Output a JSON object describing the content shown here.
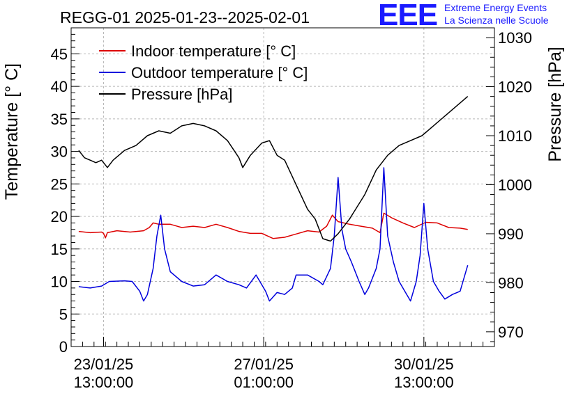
{
  "chart_data": {
    "type": "line",
    "title": "REGG-01 2025-01-23--2025-02-01",
    "ylabel": "Temperature [° C]",
    "y2label": "Pressure [hPa]",
    "ylim": [
      0,
      49
    ],
    "y2lim": [
      967,
      1032
    ],
    "xlim": [
      "2025-01-22T20:00",
      "2025-02-01T02:00"
    ],
    "yticks": [
      0,
      5,
      10,
      15,
      20,
      25,
      30,
      35,
      40,
      45
    ],
    "y2ticks": [
      970,
      980,
      990,
      1000,
      1010,
      1020,
      1030
    ],
    "xticks": [
      {
        "x": "2025-01-23T13:00",
        "label": [
          "23/01/25",
          "13:00:00"
        ]
      },
      {
        "x": "2025-01-27T01:00",
        "label": [
          "27/01/25",
          "01:00:00"
        ]
      },
      {
        "x": "2025-01-30T13:00",
        "label": [
          "30/01/25",
          "13:00:00"
        ]
      }
    ],
    "grid": true,
    "legend_position": "top-left",
    "series": [
      {
        "name": "Indoor temperature [° C]",
        "axis": "left",
        "color": "#dd0000",
        "points": [
          [
            "2025-01-23T00:00",
            17.7
          ],
          [
            "2025-01-23T06:00",
            17.5
          ],
          [
            "2025-01-23T12:00",
            17.6
          ],
          [
            "2025-01-23T13:00",
            17.4
          ],
          [
            "2025-01-23T14:00",
            16.7
          ],
          [
            "2025-01-23T15:00",
            17.5
          ],
          [
            "2025-01-23T20:00",
            17.8
          ],
          [
            "2025-01-24T03:00",
            17.6
          ],
          [
            "2025-01-24T10:00",
            17.8
          ],
          [
            "2025-01-24T13:00",
            18.3
          ],
          [
            "2025-01-24T15:00",
            19.0
          ],
          [
            "2025-01-24T18:00",
            18.8
          ],
          [
            "2025-01-25T00:00",
            18.8
          ],
          [
            "2025-01-25T06:00",
            18.3
          ],
          [
            "2025-01-25T12:00",
            18.5
          ],
          [
            "2025-01-25T18:00",
            18.3
          ],
          [
            "2025-01-26T00:00",
            18.8
          ],
          [
            "2025-01-26T06:00",
            18.3
          ],
          [
            "2025-01-26T12:00",
            17.7
          ],
          [
            "2025-01-26T18:00",
            17.4
          ],
          [
            "2025-01-27T00:00",
            17.4
          ],
          [
            "2025-01-27T06:00",
            16.6
          ],
          [
            "2025-01-27T12:00",
            16.8
          ],
          [
            "2025-01-27T18:00",
            17.3
          ],
          [
            "2025-01-28T00:00",
            17.8
          ],
          [
            "2025-01-28T06:00",
            17.6
          ],
          [
            "2025-01-28T10:00",
            18.5
          ],
          [
            "2025-01-28T13:00",
            20.2
          ],
          [
            "2025-01-28T16:00",
            19.2
          ],
          [
            "2025-01-28T22:00",
            18.8
          ],
          [
            "2025-01-29T04:00",
            18.5
          ],
          [
            "2025-01-29T10:00",
            18.2
          ],
          [
            "2025-01-29T14:00",
            17.5
          ],
          [
            "2025-01-29T16:00",
            20.5
          ],
          [
            "2025-01-29T20:00",
            19.8
          ],
          [
            "2025-01-30T02:00",
            19.0
          ],
          [
            "2025-01-30T08:00",
            18.3
          ],
          [
            "2025-01-30T14:00",
            19.1
          ],
          [
            "2025-01-30T20:00",
            19.0
          ],
          [
            "2025-01-31T02:00",
            18.3
          ],
          [
            "2025-01-31T08:00",
            18.2
          ],
          [
            "2025-01-31T12:00",
            18.0
          ]
        ]
      },
      {
        "name": "Outdoor temperature [° C]",
        "axis": "left",
        "color": "#0000dd",
        "points": [
          [
            "2025-01-23T00:00",
            9.2
          ],
          [
            "2025-01-23T06:00",
            9.0
          ],
          [
            "2025-01-23T12:00",
            9.3
          ],
          [
            "2025-01-23T16:00",
            10.0
          ],
          [
            "2025-01-24T00:00",
            10.1
          ],
          [
            "2025-01-24T04:00",
            10.0
          ],
          [
            "2025-01-24T08:00",
            8.5
          ],
          [
            "2025-01-24T10:00",
            7.0
          ],
          [
            "2025-01-24T12:00",
            8.0
          ],
          [
            "2025-01-24T15:00",
            12.0
          ],
          [
            "2025-01-24T17:00",
            17.0
          ],
          [
            "2025-01-24T19:00",
            20.2
          ],
          [
            "2025-01-24T21:00",
            15.0
          ],
          [
            "2025-01-25T00:00",
            11.5
          ],
          [
            "2025-01-25T06:00",
            10.0
          ],
          [
            "2025-01-25T12:00",
            9.3
          ],
          [
            "2025-01-25T18:00",
            9.5
          ],
          [
            "2025-01-26T00:00",
            11.0
          ],
          [
            "2025-01-26T06:00",
            10.0
          ],
          [
            "2025-01-26T12:00",
            9.5
          ],
          [
            "2025-01-26T16:00",
            9.0
          ],
          [
            "2025-01-26T21:00",
            11.0
          ],
          [
            "2025-01-27T02:00",
            8.5
          ],
          [
            "2025-01-27T04:00",
            7.0
          ],
          [
            "2025-01-27T08:00",
            8.3
          ],
          [
            "2025-01-27T12:00",
            8.0
          ],
          [
            "2025-01-27T16:00",
            9.0
          ],
          [
            "2025-01-27T18:00",
            11.0
          ],
          [
            "2025-01-28T00:00",
            11.0
          ],
          [
            "2025-01-28T06:00",
            10.0
          ],
          [
            "2025-01-28T08:00",
            9.5
          ],
          [
            "2025-01-28T12:00",
            12.0
          ],
          [
            "2025-01-28T14:00",
            17.0
          ],
          [
            "2025-01-28T16:00",
            26.0
          ],
          [
            "2025-01-28T18:00",
            18.0
          ],
          [
            "2025-01-28T20:00",
            15.0
          ],
          [
            "2025-01-28T23:00",
            13.0
          ],
          [
            "2025-01-29T03:00",
            10.0
          ],
          [
            "2025-01-29T06:00",
            8.0
          ],
          [
            "2025-01-29T08:00",
            9.0
          ],
          [
            "2025-01-29T12:00",
            12.0
          ],
          [
            "2025-01-29T14:00",
            15.0
          ],
          [
            "2025-01-29T16:00",
            27.5
          ],
          [
            "2025-01-29T18:00",
            17.0
          ],
          [
            "2025-01-29T21:00",
            13.0
          ],
          [
            "2025-01-30T00:00",
            10.0
          ],
          [
            "2025-01-30T04:00",
            8.0
          ],
          [
            "2025-01-30T06:00",
            7.0
          ],
          [
            "2025-01-30T09:00",
            10.0
          ],
          [
            "2025-01-30T11:00",
            14.0
          ],
          [
            "2025-01-30T13:00",
            22.0
          ],
          [
            "2025-01-30T15:00",
            15.0
          ],
          [
            "2025-01-30T18:00",
            10.0
          ],
          [
            "2025-01-30T21:00",
            8.5
          ],
          [
            "2025-01-31T00:00",
            7.3
          ],
          [
            "2025-01-31T04:00",
            8.0
          ],
          [
            "2025-01-31T08:00",
            8.5
          ],
          [
            "2025-01-31T12:00",
            12.5
          ]
        ]
      },
      {
        "name": "Pressure [hPa]",
        "axis": "right",
        "color": "#000000",
        "points": [
          [
            "2025-01-23T00:00",
            1007.0
          ],
          [
            "2025-01-23T03:00",
            1005.5
          ],
          [
            "2025-01-23T06:00",
            1005.0
          ],
          [
            "2025-01-23T09:00",
            1004.5
          ],
          [
            "2025-01-23T12:00",
            1005.0
          ],
          [
            "2025-01-23T15:00",
            1003.5
          ],
          [
            "2025-01-23T18:00",
            1005.0
          ],
          [
            "2025-01-24T00:00",
            1007.0
          ],
          [
            "2025-01-24T06:00",
            1008.0
          ],
          [
            "2025-01-24T12:00",
            1010.0
          ],
          [
            "2025-01-24T18:00",
            1011.0
          ],
          [
            "2025-01-25T00:00",
            1010.5
          ],
          [
            "2025-01-25T06:00",
            1012.0
          ],
          [
            "2025-01-25T12:00",
            1012.5
          ],
          [
            "2025-01-25T18:00",
            1012.0
          ],
          [
            "2025-01-26T00:00",
            1011.0
          ],
          [
            "2025-01-26T06:00",
            1009.0
          ],
          [
            "2025-01-26T12:00",
            1005.5
          ],
          [
            "2025-01-26T14:00",
            1003.5
          ],
          [
            "2025-01-26T18:00",
            1006.0
          ],
          [
            "2025-01-27T00:00",
            1008.5
          ],
          [
            "2025-01-27T04:00",
            1009.0
          ],
          [
            "2025-01-27T08:00",
            1006.0
          ],
          [
            "2025-01-27T12:00",
            1005.0
          ],
          [
            "2025-01-27T18:00",
            1000.0
          ],
          [
            "2025-01-28T00:00",
            995.0
          ],
          [
            "2025-01-28T04:00",
            993.0
          ],
          [
            "2025-01-28T08:00",
            989.0
          ],
          [
            "2025-01-28T12:00",
            988.5
          ],
          [
            "2025-01-28T16:00",
            990.0
          ],
          [
            "2025-01-28T22:00",
            993.0
          ],
          [
            "2025-01-29T06:00",
            998.0
          ],
          [
            "2025-01-29T12:00",
            1003.0
          ],
          [
            "2025-01-29T18:00",
            1006.0
          ],
          [
            "2025-01-30T00:00",
            1008.0
          ],
          [
            "2025-01-30T06:00",
            1009.0
          ],
          [
            "2025-01-30T12:00",
            1010.0
          ],
          [
            "2025-01-30T18:00",
            1012.0
          ],
          [
            "2025-01-31T00:00",
            1014.0
          ],
          [
            "2025-01-31T06:00",
            1016.0
          ],
          [
            "2025-01-31T12:00",
            1018.0
          ]
        ]
      }
    ]
  },
  "branding": {
    "logo": "EEE",
    "line1": "Extreme Energy Events",
    "line2": "La Scienza nelle Scuole"
  }
}
